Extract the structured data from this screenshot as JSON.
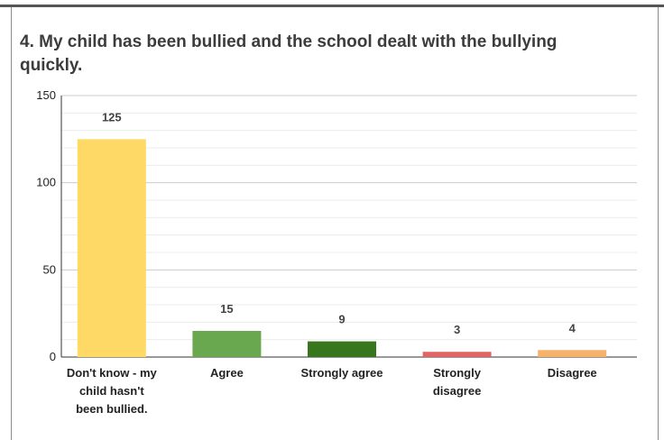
{
  "chart_data": {
    "type": "bar",
    "title": "4. My child has been bullied and the school dealt with the bullying quickly.",
    "categories": [
      [
        "Don't know - my",
        "child hasn't",
        "been bullied."
      ],
      [
        "Agree"
      ],
      [
        "Strongly agree"
      ],
      [
        "Strongly",
        "disagree"
      ],
      [
        "Disagree"
      ]
    ],
    "values": [
      125,
      15,
      9,
      3,
      4
    ],
    "colors": [
      "#FFD966",
      "#6AA84F",
      "#38761D",
      "#E06666",
      "#F6B26B"
    ],
    "ylim": [
      0,
      150
    ],
    "yticks": [
      0,
      50,
      100,
      150
    ],
    "grid": true,
    "xlabel": "",
    "ylabel": ""
  }
}
